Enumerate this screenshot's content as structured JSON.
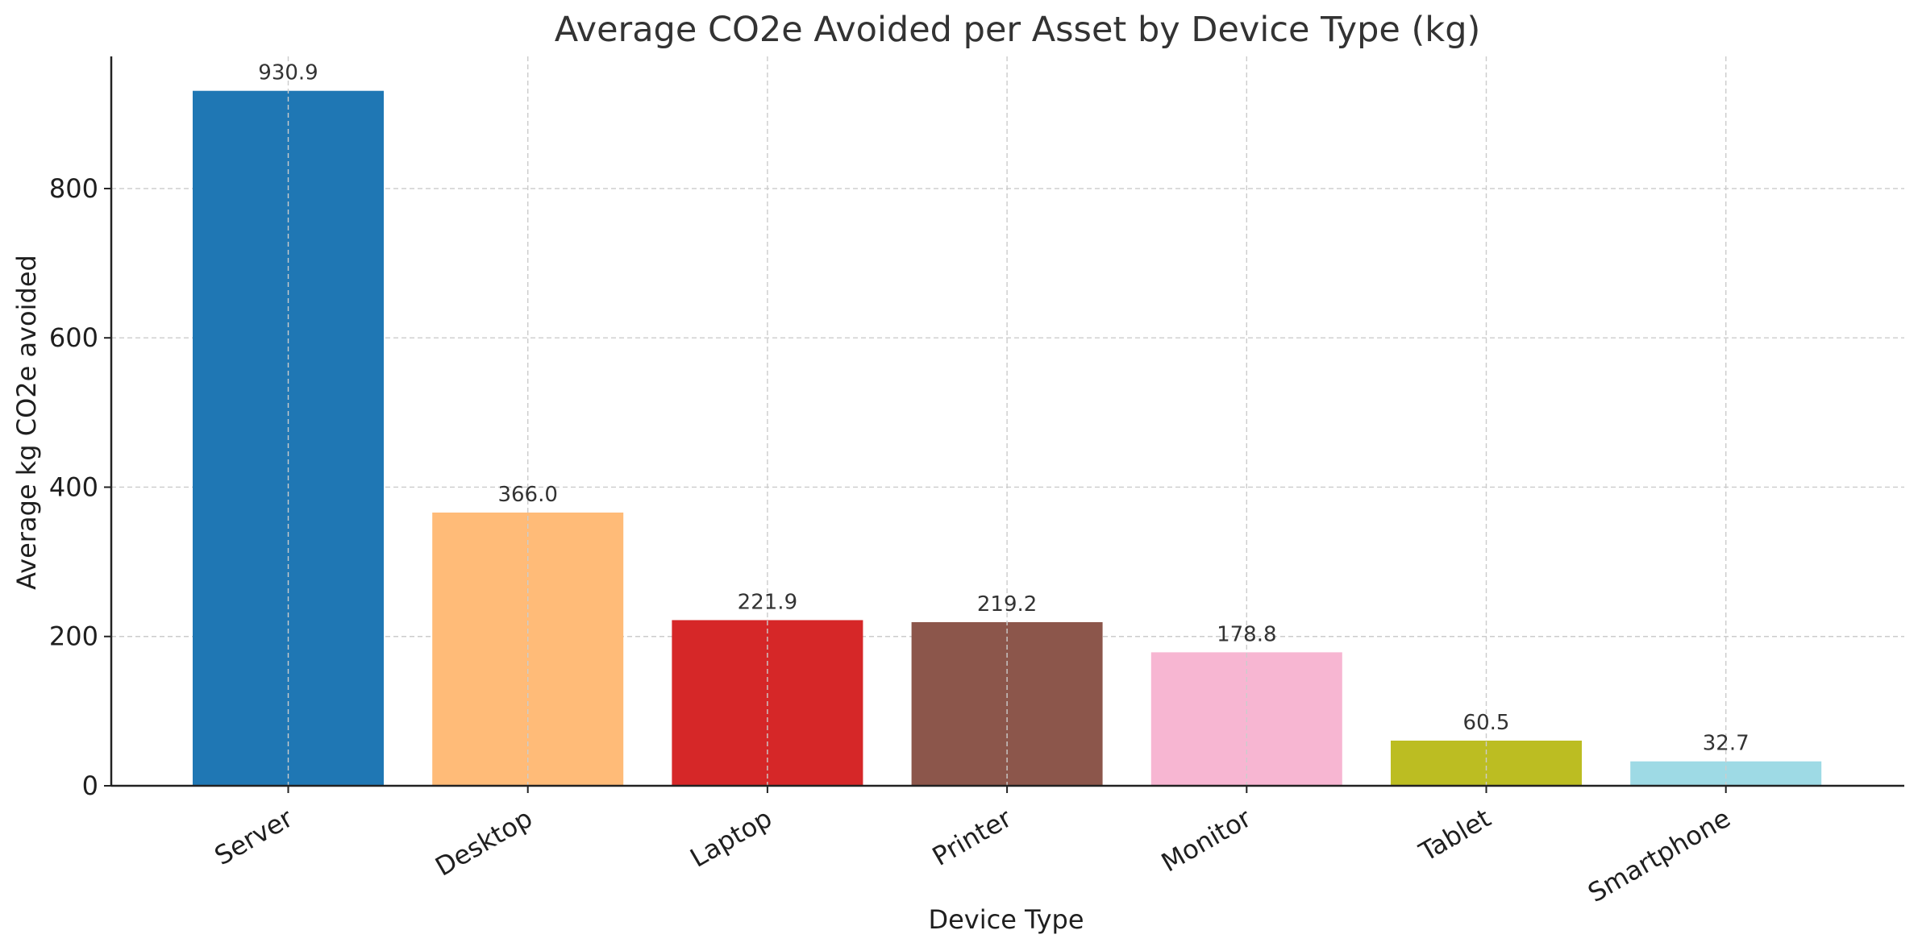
{
  "chart_data": {
    "type": "bar",
    "title": "Average CO2e Avoided per Asset by Device Type (kg)",
    "xlabel": "Device Type",
    "ylabel": "Average kg CO2e avoided",
    "categories": [
      "Server",
      "Desktop",
      "Laptop",
      "Printer",
      "Monitor",
      "Tablet",
      "Smartphone"
    ],
    "values": [
      930.9,
      366.0,
      221.9,
      219.2,
      178.8,
      60.5,
      32.7
    ],
    "value_labels": [
      "930.9",
      "366.0",
      "221.9",
      "219.2",
      "178.8",
      "60.5",
      "32.7"
    ],
    "colors": [
      "#1f77b4",
      "#ffbb78",
      "#d62728",
      "#8c564b",
      "#f7b6d2",
      "#bcbd22",
      "#9edae5"
    ],
    "ylim": [
      0,
      977
    ],
    "yticks": [
      0,
      200,
      400,
      600,
      800
    ],
    "grid": true,
    "legend": "none"
  }
}
